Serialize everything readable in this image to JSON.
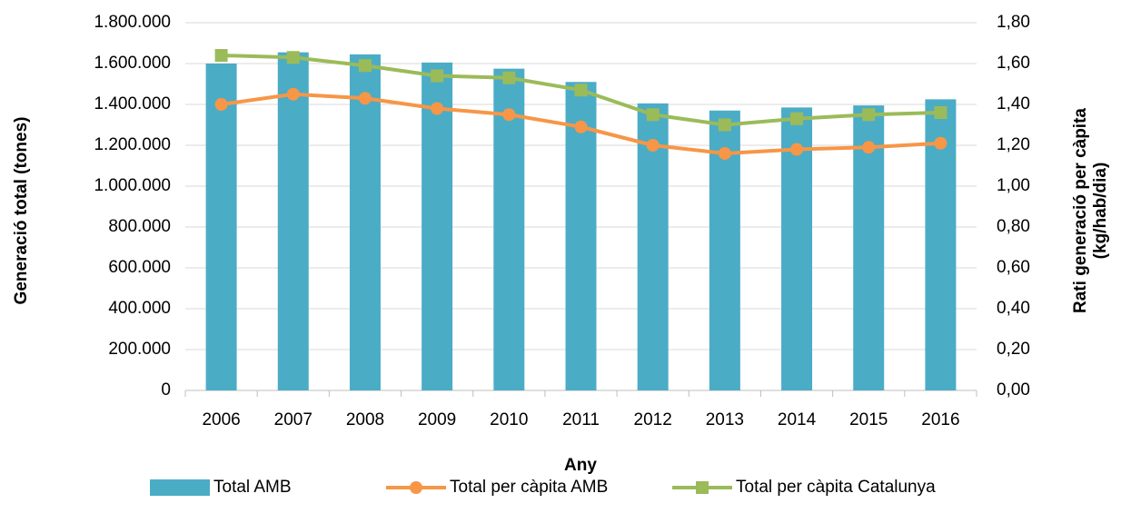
{
  "chart_data": {
    "type": "bar_line",
    "x_label": "Any",
    "y_label": "Generació total (tones)",
    "y2_label": [
      "Rati generació per càpita",
      "(kg/hab/dia)"
    ],
    "categories": [
      "2006",
      "2007",
      "2008",
      "2009",
      "2010",
      "2011",
      "2012",
      "2013",
      "2014",
      "2015",
      "2016"
    ],
    "series": [
      {
        "name": "Total AMB",
        "type": "bar",
        "color": "#4bacc6",
        "values": [
          1600000,
          1655000,
          1645000,
          1605000,
          1575000,
          1510000,
          1405000,
          1370000,
          1385000,
          1395000,
          1425000
        ]
      },
      {
        "name": "Total per càpita AMB",
        "type": "line",
        "marker": "circle",
        "axis": "y2",
        "color": "#f79646",
        "values": [
          1.4,
          1.45,
          1.43,
          1.38,
          1.35,
          1.29,
          1.2,
          1.16,
          1.18,
          1.19,
          1.21
        ]
      },
      {
        "name": "Total per càpita Catalunya",
        "type": "line",
        "marker": "square",
        "axis": "y2",
        "color": "#9bbb59",
        "values": [
          1.64,
          1.63,
          1.59,
          1.54,
          1.53,
          1.47,
          1.35,
          1.3,
          1.33,
          1.35,
          1.36
        ]
      }
    ],
    "ylim": [
      0,
      1800000
    ],
    "yticks": [
      0,
      {
        "value": 200000,
        "label": "200.000"
      },
      {
        "value": 400000,
        "label": "400.000"
      },
      {
        "value": 600000,
        "label": "600.000"
      },
      {
        "value": 800000,
        "label": "800.000"
      },
      {
        "value": 1000000,
        "label": "1.000.000"
      },
      {
        "value": 1200000,
        "label": "1.200.000"
      },
      {
        "value": 1400000,
        "label": "1.400.000"
      },
      {
        "value": 1600000,
        "label": "1.600.000"
      },
      {
        "value": 1800000,
        "label": "1.800.000"
      }
    ],
    "y2lim": [
      0,
      1.8
    ],
    "y2ticks": [
      {
        "value": 0,
        "label": "0,00"
      },
      {
        "value": 0.2,
        "label": "0,20"
      },
      {
        "value": 0.4,
        "label": "0,40"
      },
      {
        "value": 0.6,
        "label": "0,60"
      },
      {
        "value": 0.8,
        "label": "0,80"
      },
      {
        "value": 1.0,
        "label": "1,00"
      },
      {
        "value": 1.2,
        "label": "1,20"
      },
      {
        "value": 1.4,
        "label": "1,40"
      },
      {
        "value": 1.6,
        "label": "1,60"
      },
      {
        "value": 1.8,
        "label": "1,80"
      }
    ],
    "grid": true,
    "legend": "bottom"
  }
}
